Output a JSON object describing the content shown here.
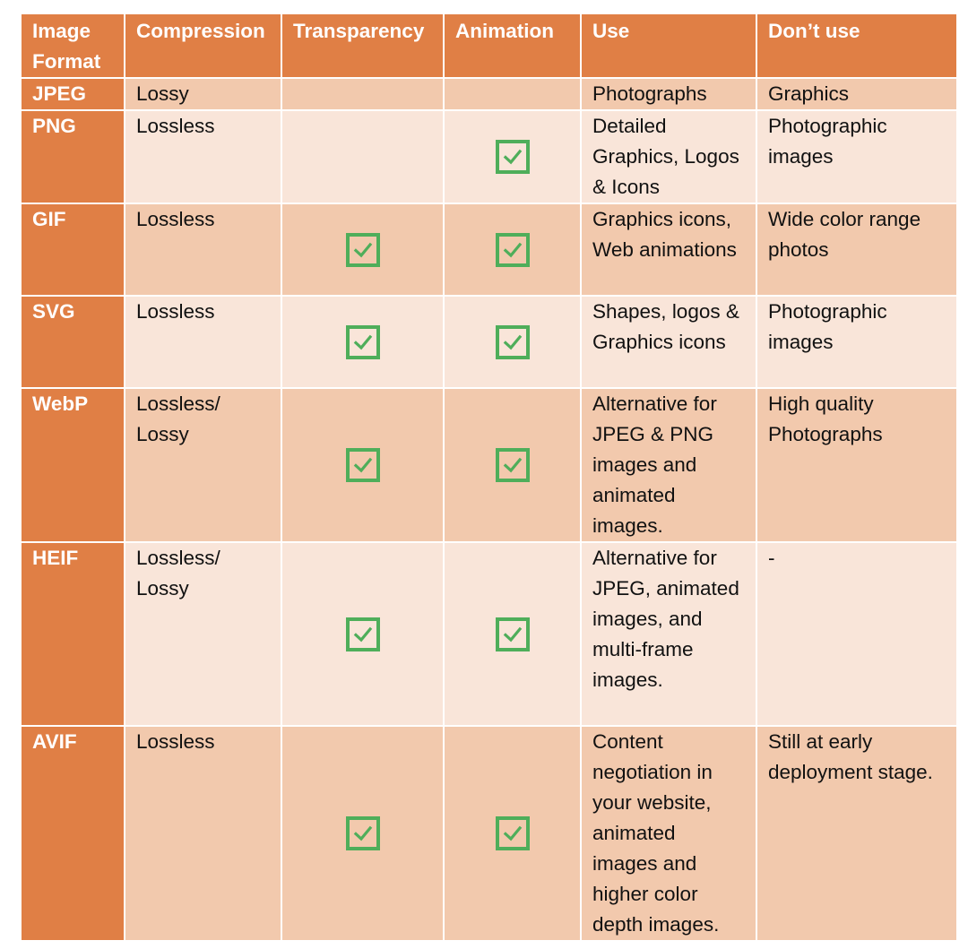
{
  "table": {
    "headers": [
      "Image Format",
      "Compression",
      "Transparency",
      "Animation",
      "Use",
      "Don’t use"
    ],
    "rows": [
      {
        "format": "JPEG",
        "compression": "Lossy",
        "transparency": false,
        "animation": false,
        "use": "Photographs",
        "dont_use": "Graphics"
      },
      {
        "format": "PNG",
        "compression": "Lossless",
        "transparency": false,
        "animation": true,
        "use": "Detailed Graphics, Logos & Icons",
        "dont_use": "Photographic images"
      },
      {
        "format": "GIF",
        "compression": "Lossless",
        "transparency": true,
        "animation": true,
        "use": "Graphics icons, Web animations",
        "dont_use": "Wide color range photos"
      },
      {
        "format": "SVG",
        "compression": "Lossless",
        "transparency": true,
        "animation": true,
        "use": "Shapes, logos & Graphics icons",
        "dont_use": "Photographic images"
      },
      {
        "format": "WebP",
        "compression": "Lossless/ Lossy",
        "transparency": true,
        "animation": true,
        "use": "Alternative for JPEG & PNG images and animated images.",
        "dont_use": "High quality Photographs"
      },
      {
        "format": "HEIF",
        "compression": "Lossless/ Lossy",
        "transparency": true,
        "animation": true,
        "use": "Alternative for JPEG, animated images, and multi-frame images.",
        "dont_use": "-"
      },
      {
        "format": "AVIF",
        "compression": "Lossless",
        "transparency": true,
        "animation": true,
        "use": "Content negotiation in your website, animated images and higher color depth images.",
        "dont_use": "Still at early deployment stage."
      }
    ]
  },
  "icons": {
    "checked": "checkbox-checked-icon"
  },
  "colors": {
    "header": "#e07f45",
    "row_dark": "#f2c9ad",
    "row_light": "#f9e5d9",
    "check": "#4fae5a"
  }
}
